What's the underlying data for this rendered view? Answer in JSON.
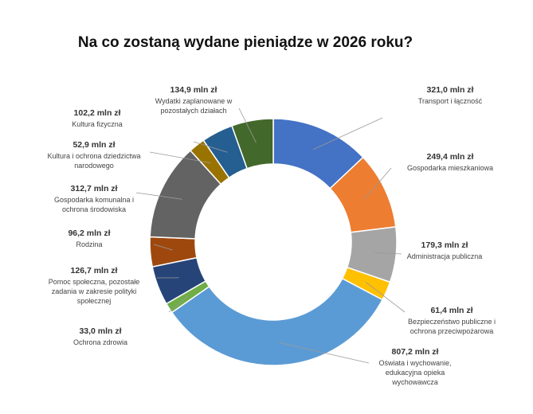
{
  "chart_data": {
    "type": "pie",
    "title": "Na co zostaną wydane pieniądze w 2026 roku?",
    "unit": "mln zł",
    "slices": [
      {
        "name": "Transport i łączność",
        "value": 321.0,
        "value_label": "321,0 mln zł",
        "color": "#4472C4"
      },
      {
        "name": "Gospodarka mieszkaniowa",
        "value": 249.4,
        "value_label": "249,4 mln zł",
        "color": "#ED7D31"
      },
      {
        "name": "Administracja publiczna",
        "value": 179.3,
        "value_label": "179,3 mln zł",
        "color": "#A5A5A5"
      },
      {
        "name": "Bezpieczeństwo publiczne i ochrona przeciwpożarowa",
        "value": 61.4,
        "value_label": "61,4 mln zł",
        "color": "#FFC000"
      },
      {
        "name": "Oświata i wychowanie, edukacyjna opieka wychowawcza",
        "value": 807.2,
        "value_label": "807,2 mln zł",
        "color": "#5B9BD5"
      },
      {
        "name": "Ochrona zdrowia",
        "value": 33.0,
        "value_label": "33,0 mln zł",
        "color": "#70AD47"
      },
      {
        "name": "Pomoc społeczna, pozostałe zadania w zakresie polityki społecznej",
        "value": 126.7,
        "value_label": "126,7 mln zł",
        "color": "#264478"
      },
      {
        "name": "Rodzina",
        "value": 96.2,
        "value_label": "96,2 mln zł",
        "color": "#9E480E"
      },
      {
        "name": "Gospodarka komunalna i ochrona środowiska",
        "value": 312.7,
        "value_label": "312,7 mln zł",
        "color": "#636363"
      },
      {
        "name": "Kultura i ochrona dziedzictwa narodowego",
        "value": 52.9,
        "value_label": "52,9 mln zł",
        "color": "#997300"
      },
      {
        "name": "Kultura fizyczna",
        "value": 102.2,
        "value_label": "102,2 mln zł",
        "color": "#255E91"
      },
      {
        "name": "Wydatki zaplanowane w pozostałych działach",
        "value": 134.9,
        "value_label": "134,9 mln zł",
        "color": "#43682B"
      }
    ]
  }
}
